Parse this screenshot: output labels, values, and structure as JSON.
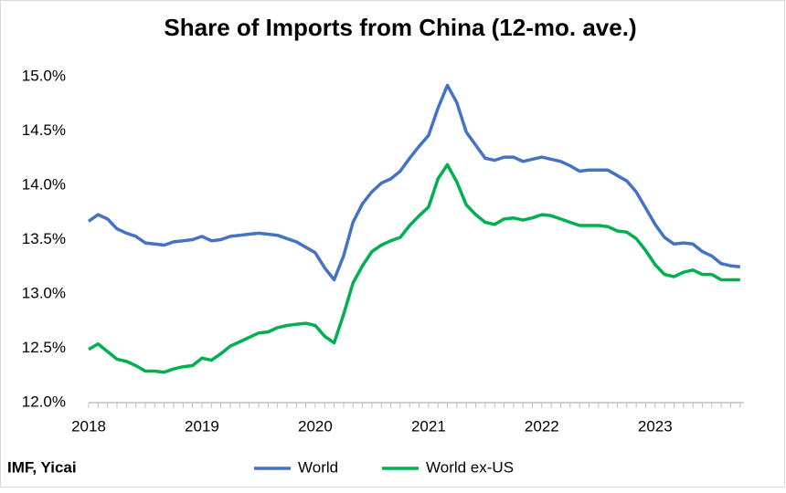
{
  "chart_data": {
    "type": "line",
    "title": "Share of Imports from China (12-mo. ave.)",
    "source": "IMF, Yicai",
    "categories": [
      "2018",
      null,
      null,
      null,
      null,
      null,
      null,
      null,
      null,
      null,
      null,
      null,
      "2019",
      null,
      null,
      null,
      null,
      null,
      null,
      null,
      null,
      null,
      null,
      null,
      "2020",
      null,
      null,
      null,
      null,
      null,
      null,
      null,
      null,
      null,
      null,
      null,
      "2021",
      null,
      null,
      null,
      null,
      null,
      null,
      null,
      null,
      null,
      null,
      null,
      "2022",
      null,
      null,
      null,
      null,
      null,
      null,
      null,
      null,
      null,
      null,
      null,
      "2023",
      null,
      null,
      null,
      null,
      null,
      null,
      null,
      null,
      null
    ],
    "series": [
      {
        "name": "World",
        "color": "#4472c4",
        "values": [
          13.67,
          13.73,
          13.69,
          13.6,
          13.56,
          13.53,
          13.47,
          13.46,
          13.45,
          13.48,
          13.49,
          13.5,
          13.53,
          13.49,
          13.5,
          13.53,
          13.54,
          13.55,
          13.56,
          13.55,
          13.54,
          13.51,
          13.48,
          13.43,
          13.38,
          13.24,
          13.13,
          13.35,
          13.66,
          13.83,
          13.94,
          14.02,
          14.06,
          14.13,
          14.25,
          14.36,
          14.46,
          14.71,
          14.92,
          14.76,
          14.49,
          14.37,
          14.25,
          14.23,
          14.26,
          14.26,
          14.22,
          14.24,
          14.26,
          14.24,
          14.22,
          14.18,
          14.13,
          14.14,
          14.14,
          14.14,
          14.09,
          14.04,
          13.94,
          13.79,
          13.64,
          13.52,
          13.46,
          13.47,
          13.46,
          13.39,
          13.35,
          13.28,
          13.26,
          13.25
        ]
      },
      {
        "name": "World ex-US",
        "color": "#00b050",
        "values": [
          12.49,
          12.54,
          12.47,
          12.4,
          12.38,
          12.34,
          12.29,
          12.29,
          12.28,
          12.31,
          12.33,
          12.34,
          12.41,
          12.39,
          12.45,
          12.52,
          12.56,
          12.6,
          12.64,
          12.65,
          12.69,
          12.71,
          12.72,
          12.73,
          12.71,
          12.61,
          12.55,
          12.81,
          13.1,
          13.26,
          13.39,
          13.45,
          13.49,
          13.52,
          13.63,
          13.72,
          13.8,
          14.06,
          14.19,
          14.03,
          13.82,
          13.73,
          13.66,
          13.64,
          13.69,
          13.7,
          13.68,
          13.7,
          13.73,
          13.72,
          13.69,
          13.66,
          13.63,
          13.63,
          13.63,
          13.62,
          13.58,
          13.57,
          13.51,
          13.4,
          13.27,
          13.18,
          13.16,
          13.2,
          13.22,
          13.18,
          13.18,
          13.13,
          13.13,
          13.13
        ]
      }
    ],
    "ylim": [
      12,
      15
    ],
    "yticks": [
      {
        "value": 12,
        "label": "12.0%"
      },
      {
        "value": 12.5,
        "label": "12.5%"
      },
      {
        "value": 13,
        "label": "13.0%"
      },
      {
        "value": 13.5,
        "label": "13.5%"
      },
      {
        "value": 14,
        "label": "14.0%"
      },
      {
        "value": 14.5,
        "label": "14.5%"
      },
      {
        "value": 15,
        "label": "15.0%"
      }
    ],
    "grid": false,
    "legend": "bottom"
  }
}
